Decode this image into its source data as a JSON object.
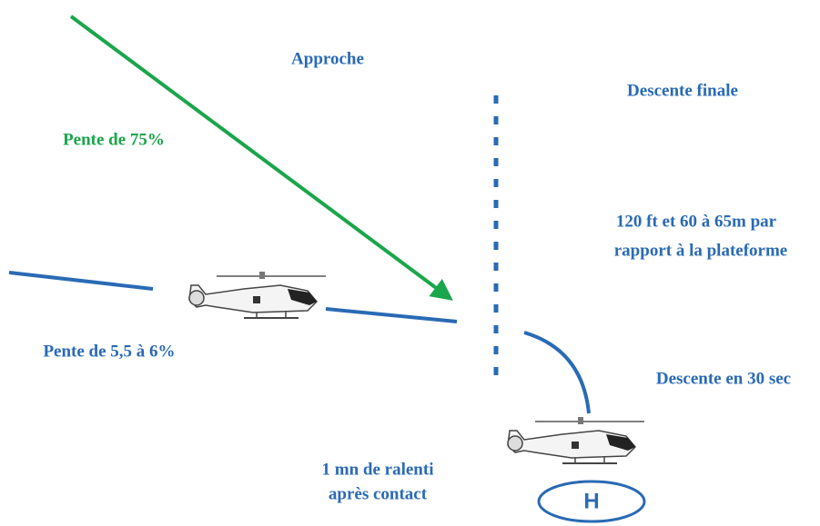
{
  "approach": {
    "title": "Approche",
    "slope_steep": "Pente de 75%",
    "slope_shallow": "Pente de 5,5 à 6%"
  },
  "final_descent": {
    "title": "Descente finale",
    "height": [
      "120 ft et 60 à 65m par",
      "rapport à la plateforme"
    ],
    "duration": "Descente en 30 sec"
  },
  "idle": [
    "1 mn de ralenti",
    "après contact"
  ],
  "helipad": "H"
}
